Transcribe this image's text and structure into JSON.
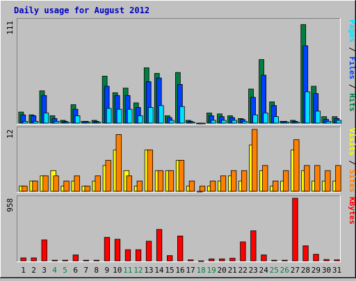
{
  "chart_data": {
    "type": "bar",
    "title": "Daily usage for August 2012",
    "x": [
      "1",
      "2",
      "3",
      "4",
      "5",
      "6",
      "7",
      "8",
      "9",
      "10",
      "11",
      "12",
      "13",
      "14",
      "15",
      "16",
      "17",
      "18",
      "19",
      "20",
      "21",
      "22",
      "23",
      "24",
      "25",
      "26",
      "27",
      "28",
      "29",
      "30",
      "31"
    ],
    "weekend_days": [
      "4",
      "5",
      "11",
      "12",
      "18",
      "19",
      "25",
      "26"
    ],
    "colors": {
      "hits": "#008040",
      "files": "#0040ff",
      "pages": "#00e0ff",
      "visits": "#ffff00",
      "sites": "#ff8000",
      "kbytes": "#ff0000",
      "title": "#0000c0",
      "weekday_label": "#000000",
      "weekend_label": "#008040"
    },
    "panels": [
      {
        "id": "hits-files-pages",
        "max_label": "111",
        "ylim": [
          0,
          111
        ],
        "series": [
          {
            "name": "Hits",
            "color": "#008040",
            "values": [
              12,
              9,
              35,
              8,
              3,
              20,
              2,
              3,
              51,
              33,
              38,
              22,
              60,
              54,
              8,
              55,
              3,
              0,
              11,
              10,
              8,
              5,
              37,
              69,
              23,
              2,
              3,
              107,
              40,
              7,
              7
            ]
          },
          {
            "name": "Files",
            "color": "#0040ff",
            "values": [
              9,
              8,
              30,
              5,
              2,
              15,
              2,
              2,
              40,
              30,
              30,
              17,
              45,
              49,
              6,
              42,
              2,
              0,
              8,
              7,
              6,
              4,
              28,
              52,
              19,
              2,
              2,
              84,
              32,
              4,
              5
            ]
          },
          {
            "name": "Pages",
            "color": "#00e0ff",
            "values": [
              2,
              2,
              11,
              2,
              1,
              8,
              1,
              1,
              16,
              15,
              15,
              8,
              17,
              19,
              3,
              18,
              1,
              0,
              3,
              3,
              3,
              2,
              9,
              11,
              7,
              1,
              1,
              34,
              13,
              2,
              3
            ]
          }
        ],
        "legend": [
          {
            "text": "Hits",
            "color": "#008040"
          },
          {
            "text": "Files",
            "color": "#0040ff"
          },
          {
            "text": "Pages",
            "color": "#00e0ff"
          }
        ]
      },
      {
        "id": "visits-sites",
        "max_label": "12",
        "ylim": [
          0,
          12
        ],
        "series": [
          {
            "name": "Visits",
            "color": "#ffff00",
            "values": [
              1,
              2,
              3,
              4,
              1,
              2,
              1,
              2,
              5,
              8,
              4,
              1,
              8,
              4,
              4,
              6,
              1,
              0,
              1,
              2,
              3,
              2,
              9,
              4,
              1,
              2,
              8,
              4,
              2,
              2,
              2
            ]
          },
          {
            "name": "Sites",
            "color": "#ff8000",
            "values": [
              1,
              2,
              3,
              3,
              2,
              3,
              1,
              3,
              6,
              11,
              3,
              2,
              8,
              4,
              4,
              6,
              2,
              1,
              2,
              3,
              4,
              4,
              12,
              5,
              2,
              4,
              10,
              5,
              5,
              4,
              5
            ]
          }
        ],
        "legend": [
          {
            "text": "Sites",
            "color": "#ff8000"
          },
          {
            "text": "Visits",
            "color": "#ffff00"
          }
        ]
      },
      {
        "id": "kbytes",
        "max_label": "958",
        "ylim": [
          0,
          958
        ],
        "series": [
          {
            "name": "KBytes",
            "color": "#ff0000",
            "values": [
              45,
              45,
              320,
              10,
              10,
              90,
              10,
              10,
              360,
              330,
              170,
              170,
              300,
              480,
              80,
              380,
              15,
              0,
              30,
              30,
              40,
              290,
              460,
              90,
              10,
              10,
              958,
              230,
              100,
              20,
              15
            ]
          }
        ],
        "legend": [
          {
            "text": "KBytes",
            "color": "#ff0000"
          }
        ]
      }
    ]
  }
}
